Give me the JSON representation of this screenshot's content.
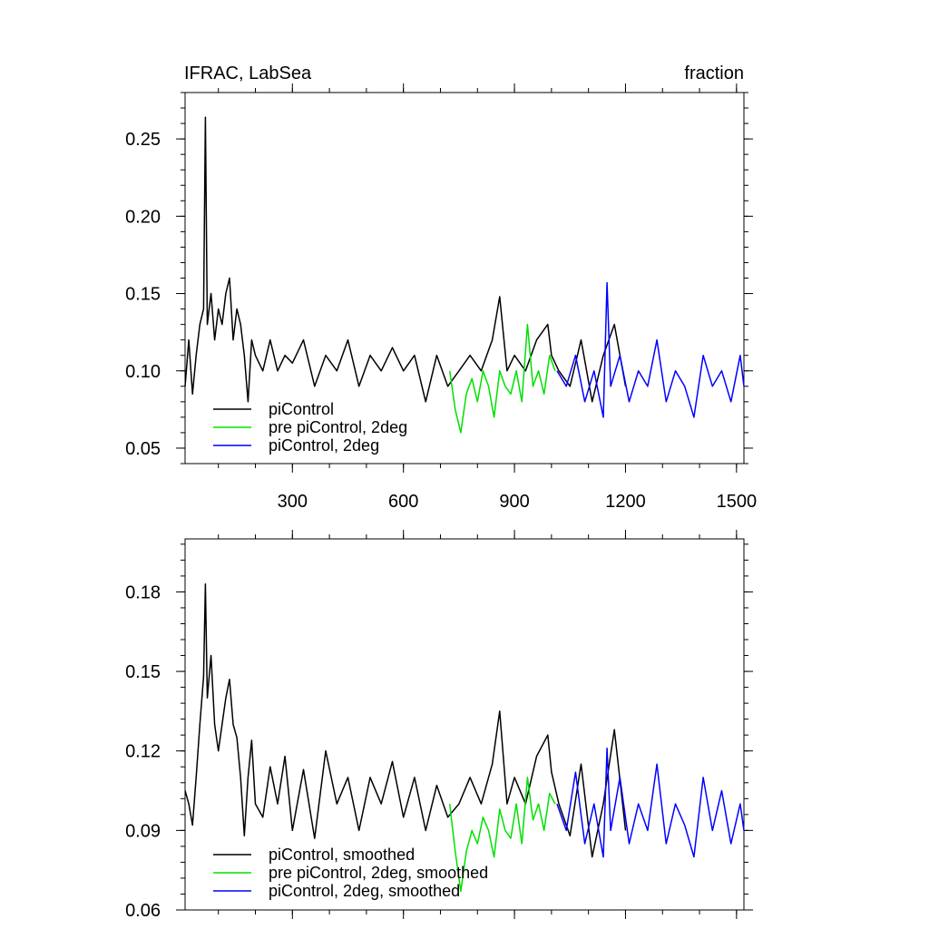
{
  "figure": {
    "left_title": "IFRAC, LabSea",
    "right_title": "fraction"
  },
  "chart_data": [
    {
      "type": "line",
      "title": "IFRAC, LabSea",
      "units": "fraction",
      "xlim": [
        10,
        1520
      ],
      "ylim": [
        0.04,
        0.28
      ],
      "x_ticks": [
        300,
        600,
        900,
        1200,
        1500
      ],
      "x_tick_labels": [
        "300",
        "600",
        "900",
        "1200",
        "1500"
      ],
      "y_ticks": [
        0.05,
        0.1,
        0.15,
        0.2,
        0.25
      ],
      "y_tick_labels": [
        "0.05",
        "0.10",
        "0.15",
        "0.20",
        "0.25"
      ],
      "legend_placement": "bottom-left",
      "series": [
        {
          "name": "piControl",
          "color": "#000000",
          "x": [
            10,
            20,
            30,
            40,
            50,
            60,
            65,
            70,
            80,
            90,
            100,
            110,
            120,
            130,
            140,
            150,
            160,
            170,
            180,
            190,
            200,
            220,
            240,
            260,
            280,
            300,
            330,
            360,
            390,
            420,
            450,
            480,
            510,
            540,
            570,
            600,
            630,
            660,
            690,
            720,
            750,
            780,
            810,
            840,
            860,
            880,
            900,
            930,
            960,
            990,
            1000,
            1020,
            1050,
            1080,
            1110,
            1140,
            1170,
            1200
          ],
          "values": [
            0.09,
            0.12,
            0.085,
            0.11,
            0.13,
            0.14,
            0.264,
            0.13,
            0.15,
            0.12,
            0.14,
            0.13,
            0.15,
            0.16,
            0.12,
            0.14,
            0.13,
            0.11,
            0.08,
            0.12,
            0.11,
            0.1,
            0.12,
            0.1,
            0.11,
            0.105,
            0.12,
            0.09,
            0.11,
            0.1,
            0.12,
            0.09,
            0.11,
            0.1,
            0.115,
            0.1,
            0.11,
            0.08,
            0.11,
            0.09,
            0.1,
            0.11,
            0.1,
            0.12,
            0.148,
            0.1,
            0.11,
            0.1,
            0.12,
            0.13,
            0.11,
            0.1,
            0.09,
            0.12,
            0.08,
            0.11,
            0.13,
            0.09
          ]
        },
        {
          "name": "pre piControl, 2deg",
          "color": "#00e000",
          "x": [
            725,
            740,
            755,
            770,
            785,
            800,
            815,
            830,
            845,
            860,
            875,
            890,
            905,
            920,
            935,
            950,
            965,
            980,
            995,
            1010
          ],
          "values": [
            0.1,
            0.075,
            0.06,
            0.085,
            0.095,
            0.08,
            0.1,
            0.09,
            0.07,
            0.1,
            0.09,
            0.085,
            0.1,
            0.08,
            0.13,
            0.09,
            0.1,
            0.085,
            0.11,
            0.1
          ]
        },
        {
          "name": "piControl, 2deg",
          "color": "#0000ff",
          "x": [
            1015,
            1040,
            1065,
            1090,
            1115,
            1140,
            1150,
            1160,
            1185,
            1210,
            1235,
            1260,
            1285,
            1310,
            1335,
            1360,
            1385,
            1410,
            1435,
            1460,
            1485,
            1510,
            1520
          ],
          "values": [
            0.1,
            0.09,
            0.11,
            0.08,
            0.1,
            0.07,
            0.157,
            0.09,
            0.11,
            0.08,
            0.1,
            0.09,
            0.12,
            0.08,
            0.1,
            0.09,
            0.07,
            0.11,
            0.09,
            0.1,
            0.08,
            0.11,
            0.09
          ]
        }
      ]
    },
    {
      "type": "line",
      "xlim": [
        10,
        1520
      ],
      "ylim": [
        0.06,
        0.2
      ],
      "x_ticks": [
        300,
        600,
        900,
        1200,
        1500
      ],
      "y_ticks": [
        0.06,
        0.09,
        0.12,
        0.15,
        0.18
      ],
      "y_tick_labels": [
        "0.06",
        "0.09",
        "0.12",
        "0.15",
        "0.18"
      ],
      "legend_placement": "bottom-left",
      "series": [
        {
          "name": "piControl, smoothed",
          "color": "#000000",
          "x": [
            10,
            20,
            30,
            40,
            50,
            60,
            65,
            70,
            80,
            90,
            100,
            110,
            120,
            130,
            140,
            150,
            160,
            170,
            180,
            190,
            200,
            220,
            240,
            260,
            280,
            300,
            330,
            360,
            390,
            420,
            450,
            480,
            510,
            540,
            570,
            600,
            630,
            660,
            690,
            720,
            750,
            780,
            810,
            840,
            860,
            880,
            900,
            930,
            960,
            990,
            1000,
            1020,
            1050,
            1080,
            1110,
            1140,
            1170,
            1200
          ],
          "values": [
            0.105,
            0.1,
            0.092,
            0.11,
            0.13,
            0.148,
            0.183,
            0.14,
            0.156,
            0.13,
            0.12,
            0.13,
            0.14,
            0.147,
            0.13,
            0.125,
            0.11,
            0.088,
            0.11,
            0.124,
            0.1,
            0.095,
            0.114,
            0.1,
            0.118,
            0.09,
            0.113,
            0.087,
            0.12,
            0.1,
            0.11,
            0.09,
            0.11,
            0.1,
            0.116,
            0.095,
            0.11,
            0.09,
            0.107,
            0.095,
            0.1,
            0.11,
            0.1,
            0.115,
            0.135,
            0.1,
            0.11,
            0.1,
            0.118,
            0.126,
            0.112,
            0.1,
            0.088,
            0.115,
            0.08,
            0.1,
            0.128,
            0.09
          ]
        },
        {
          "name": "pre piControl, 2deg, smoothed",
          "color": "#00e000",
          "x": [
            725,
            740,
            755,
            770,
            785,
            800,
            815,
            830,
            845,
            860,
            875,
            890,
            905,
            920,
            935,
            950,
            965,
            980,
            995,
            1010
          ],
          "values": [
            0.1,
            0.082,
            0.067,
            0.082,
            0.09,
            0.085,
            0.095,
            0.09,
            0.08,
            0.098,
            0.09,
            0.087,
            0.1,
            0.085,
            0.11,
            0.094,
            0.1,
            0.09,
            0.104,
            0.1
          ]
        },
        {
          "name": "piControl, 2deg, smoothed",
          "color": "#0000ff",
          "x": [
            1015,
            1040,
            1065,
            1090,
            1115,
            1140,
            1150,
            1160,
            1185,
            1210,
            1235,
            1260,
            1285,
            1310,
            1335,
            1360,
            1385,
            1410,
            1435,
            1460,
            1485,
            1510,
            1520
          ],
          "values": [
            0.1,
            0.09,
            0.112,
            0.085,
            0.1,
            0.08,
            0.121,
            0.09,
            0.11,
            0.085,
            0.1,
            0.09,
            0.115,
            0.085,
            0.1,
            0.092,
            0.08,
            0.11,
            0.09,
            0.105,
            0.085,
            0.1,
            0.09
          ]
        }
      ]
    }
  ]
}
